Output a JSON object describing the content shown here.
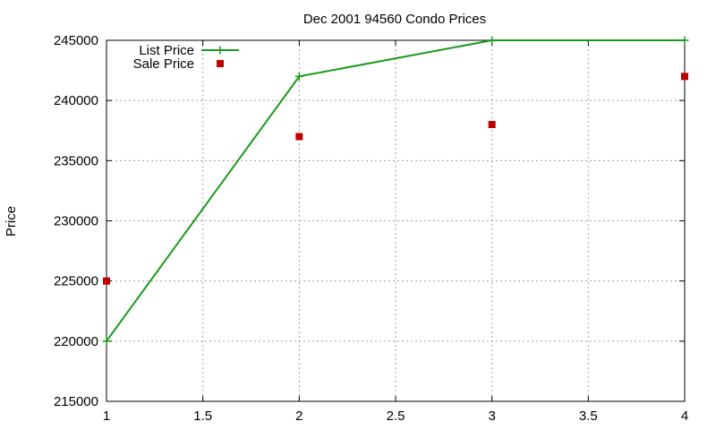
{
  "chart_data": {
    "type": "line",
    "title": "Dec 2001 94560 Condo Prices",
    "xlabel": "",
    "ylabel": "Price",
    "xlim": [
      1,
      4
    ],
    "ylim": [
      215000,
      245000
    ],
    "x_ticks": [
      "1",
      "1.5",
      "2",
      "2.5",
      "3",
      "3.5",
      "4"
    ],
    "y_ticks": [
      "215000",
      "220000",
      "225000",
      "230000",
      "235000",
      "240000",
      "245000"
    ],
    "grid": true,
    "legend_position": "top-left",
    "series": [
      {
        "name": "List Price",
        "style": "linespoints",
        "marker": "plus",
        "color": "#1a9a1a",
        "x": [
          1,
          2,
          3,
          4
        ],
        "y": [
          220000,
          242000,
          245000,
          245000
        ]
      },
      {
        "name": "Sale Price",
        "style": "points",
        "marker": "square",
        "color": "#c00000",
        "x": [
          1,
          2,
          3,
          4
        ],
        "y": [
          225000,
          237000,
          238000,
          242000
        ]
      }
    ]
  }
}
